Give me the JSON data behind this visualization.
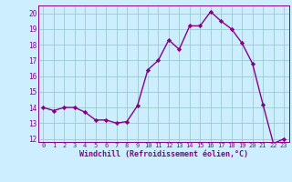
{
  "x": [
    0,
    1,
    2,
    3,
    4,
    5,
    6,
    7,
    8,
    9,
    10,
    11,
    12,
    13,
    14,
    15,
    16,
    17,
    18,
    19,
    20,
    21,
    22,
    23
  ],
  "y": [
    14.0,
    13.8,
    14.0,
    14.0,
    13.7,
    13.2,
    13.2,
    13.0,
    13.1,
    14.1,
    16.4,
    17.0,
    18.3,
    17.7,
    19.2,
    19.2,
    20.1,
    19.5,
    19.0,
    18.1,
    16.8,
    14.2,
    11.7,
    12.0
  ],
  "line_color": "#880088",
  "marker": "D",
  "marker_size": 2.2,
  "bg_color": "#cceeff",
  "grid_color": "#99cccc",
  "xlabel": "Windchill (Refroidissement éolien,°C)",
  "xlim": [
    -0.5,
    23.5
  ],
  "ylim": [
    11.8,
    20.5
  ],
  "yticks": [
    12,
    13,
    14,
    15,
    16,
    17,
    18,
    19,
    20
  ],
  "xticks": [
    0,
    1,
    2,
    3,
    4,
    5,
    6,
    7,
    8,
    9,
    10,
    11,
    12,
    13,
    14,
    15,
    16,
    17,
    18,
    19,
    20,
    21,
    22,
    23
  ],
  "xtick_fontsize": 5.0,
  "ytick_fontsize": 5.5,
  "xlabel_fontsize": 6.0,
  "line_width": 1.0
}
